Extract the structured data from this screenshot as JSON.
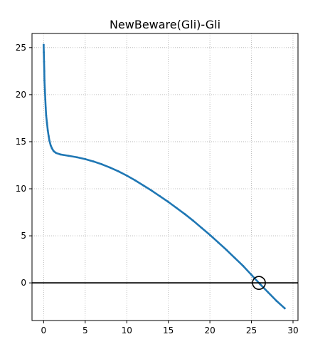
{
  "chart_data": {
    "type": "scatter",
    "title": "NewBeware(Gli)-Gli",
    "xlabel": "",
    "ylabel": "",
    "xlim": [
      -1.4,
      30.6
    ],
    "ylim": [
      -4.0,
      26.5
    ],
    "x_ticks": [
      0,
      5,
      10,
      15,
      20,
      25,
      30
    ],
    "y_ticks": [
      0,
      5,
      10,
      15,
      20,
      25
    ],
    "x_tick_labels": [
      "0",
      "5",
      "10",
      "15",
      "20",
      "25",
      "30"
    ],
    "y_tick_labels": [
      "0",
      "5",
      "10",
      "15",
      "20",
      "25"
    ],
    "grid": true,
    "grid_style": "dotted",
    "colors": {
      "series": "#1f77b4",
      "grid": "#b0b0b0",
      "axis": "#000000",
      "reference_line": "#000000",
      "marker": "#000000"
    },
    "reference_line": {
      "orientation": "horizontal",
      "y": 0
    },
    "highlight_marker": {
      "shape": "open-circle",
      "x": 25.9,
      "y": 0
    },
    "series": [
      {
        "color": "#1f77b4",
        "points": [
          [
            0.0,
            25.3
          ],
          [
            0.02,
            24.5
          ],
          [
            0.05,
            23.5
          ],
          [
            0.08,
            22.5
          ],
          [
            0.1,
            21.5
          ],
          [
            0.15,
            20.5
          ],
          [
            0.2,
            19.5
          ],
          [
            0.25,
            18.6
          ],
          [
            0.3,
            17.8
          ],
          [
            0.4,
            17.0
          ],
          [
            0.5,
            16.2
          ],
          [
            0.6,
            15.6
          ],
          [
            0.7,
            15.1
          ],
          [
            0.85,
            14.6
          ],
          [
            1.0,
            14.3
          ],
          [
            1.2,
            14.0
          ],
          [
            1.5,
            13.8
          ],
          [
            2.0,
            13.65
          ],
          [
            3.0,
            13.5
          ],
          [
            4.0,
            13.35
          ],
          [
            5.0,
            13.15
          ],
          [
            6.0,
            12.9
          ],
          [
            7.0,
            12.6
          ],
          [
            8.0,
            12.25
          ],
          [
            9.0,
            11.85
          ],
          [
            10.0,
            11.4
          ],
          [
            11.0,
            10.9
          ],
          [
            12.0,
            10.35
          ],
          [
            13.0,
            9.8
          ],
          [
            14.0,
            9.2
          ],
          [
            15.0,
            8.6
          ],
          [
            16.0,
            7.95
          ],
          [
            17.0,
            7.3
          ],
          [
            18.0,
            6.6
          ],
          [
            19.0,
            5.85
          ],
          [
            20.0,
            5.1
          ],
          [
            21.0,
            4.3
          ],
          [
            22.0,
            3.5
          ],
          [
            23.0,
            2.65
          ],
          [
            24.0,
            1.8
          ],
          [
            25.0,
            0.85
          ],
          [
            26.0,
            -0.1
          ],
          [
            27.0,
            -1.0
          ],
          [
            28.0,
            -1.9
          ],
          [
            29.0,
            -2.7
          ]
        ]
      }
    ]
  }
}
